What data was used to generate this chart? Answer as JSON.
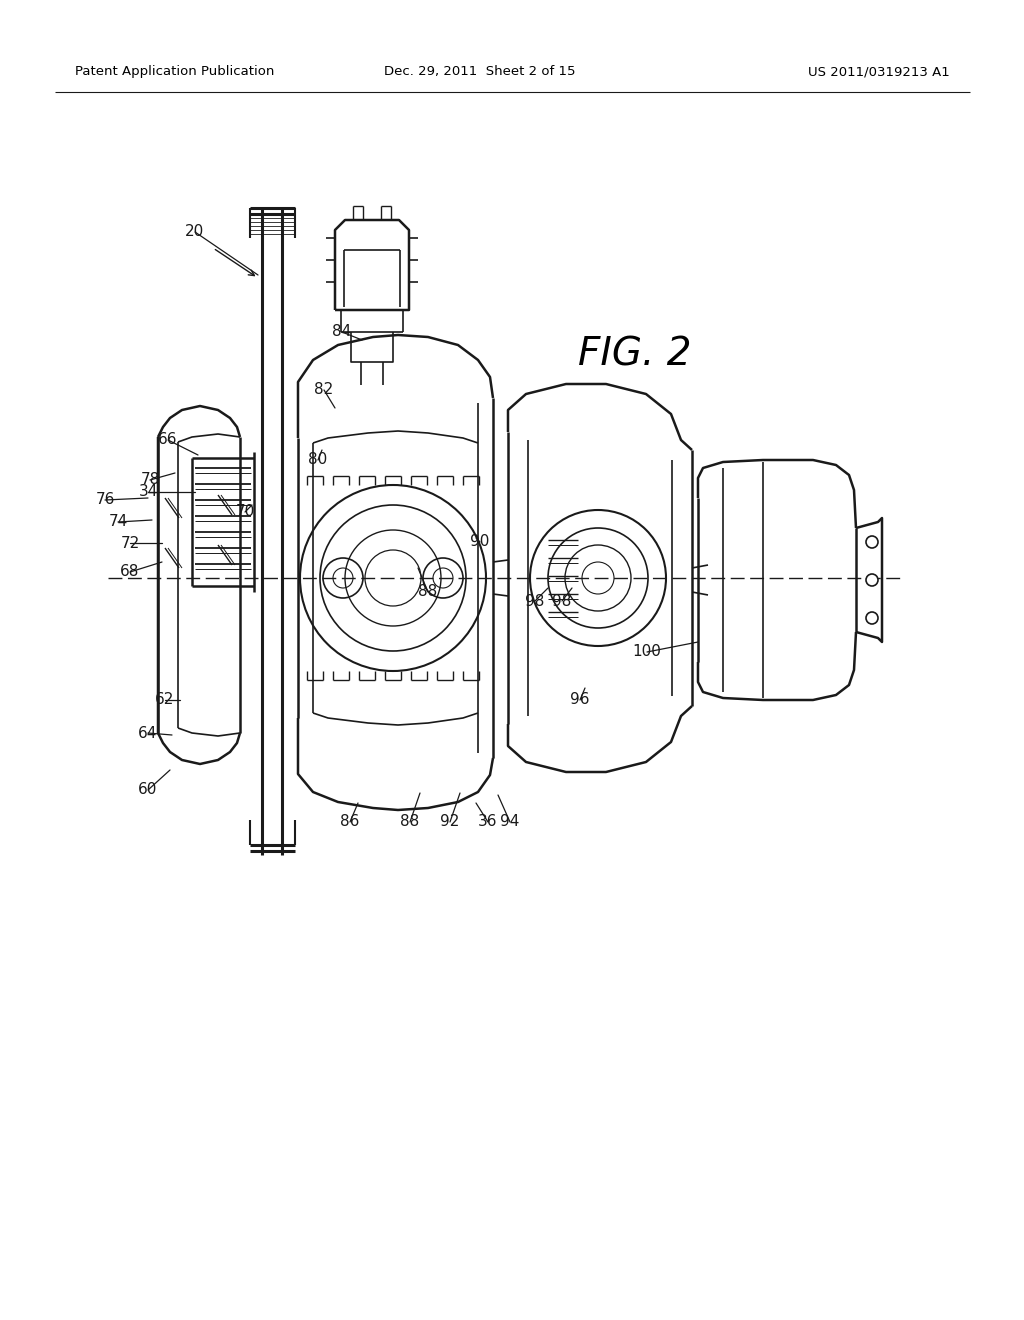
{
  "header_left": "Patent Application Publication",
  "header_center": "Dec. 29, 2011  Sheet 2 of 15",
  "header_right": "US 2011/0319213 A1",
  "fig_label": "FIG. 2",
  "background_color": "#ffffff",
  "text_color": "#000000",
  "line_color": "#1a1a1a",
  "refs": [
    [
      "20",
      195,
      232,
      258,
      275
    ],
    [
      "34",
      148,
      492,
      195,
      492
    ],
    [
      "36",
      488,
      822,
      476,
      803
    ],
    [
      "60",
      148,
      790,
      170,
      770
    ],
    [
      "62",
      165,
      700,
      180,
      700
    ],
    [
      "64",
      148,
      733,
      172,
      735
    ],
    [
      "66",
      168,
      440,
      198,
      455
    ],
    [
      "68",
      130,
      572,
      162,
      562
    ],
    [
      "70",
      245,
      512,
      252,
      505
    ],
    [
      "72",
      130,
      543,
      162,
      543
    ],
    [
      "74",
      118,
      522,
      152,
      520
    ],
    [
      "76",
      105,
      500,
      148,
      498
    ],
    [
      "78",
      150,
      480,
      175,
      473
    ],
    [
      "80",
      318,
      460,
      322,
      450
    ],
    [
      "82",
      324,
      390,
      335,
      408
    ],
    [
      "84",
      342,
      332,
      362,
      340
    ],
    [
      "86",
      350,
      822,
      358,
      803
    ],
    [
      "88",
      428,
      592,
      418,
      568
    ],
    [
      "88",
      410,
      822,
      420,
      793
    ],
    [
      "90",
      480,
      542,
      476,
      538
    ],
    [
      "92",
      450,
      822,
      460,
      793
    ],
    [
      "94",
      510,
      822,
      498,
      795
    ],
    [
      "96",
      580,
      700,
      585,
      688
    ],
    [
      "98",
      535,
      601,
      548,
      588
    ],
    [
      "98",
      562,
      601,
      572,
      588
    ],
    [
      "100",
      647,
      652,
      698,
      642
    ]
  ]
}
